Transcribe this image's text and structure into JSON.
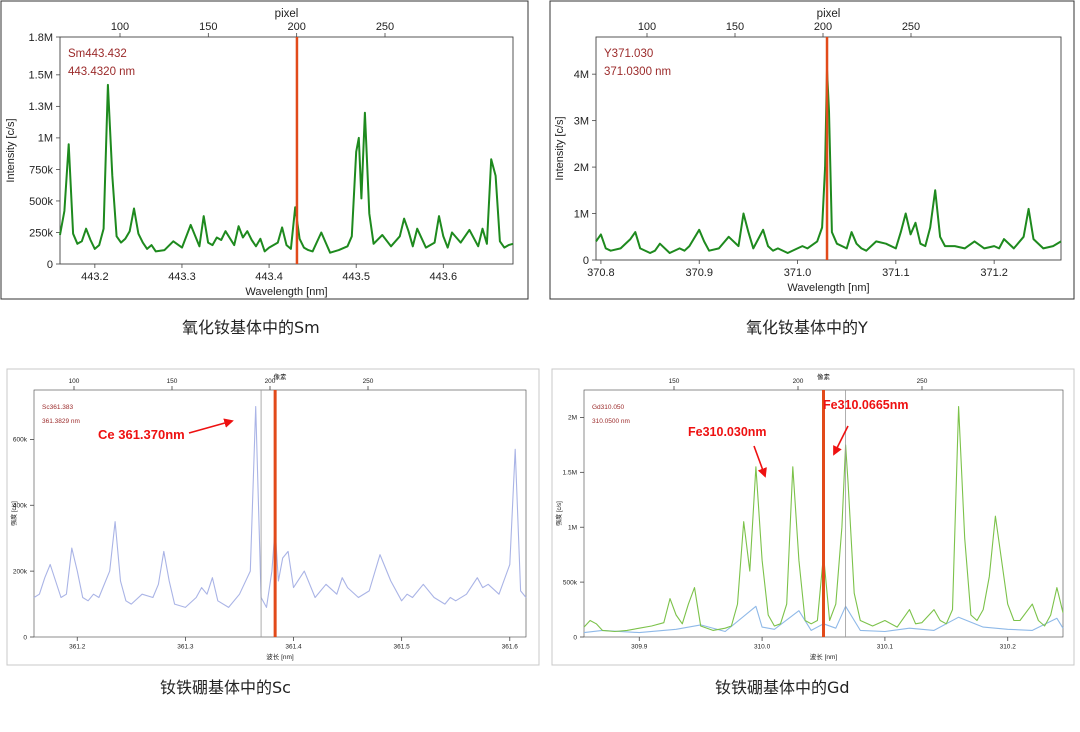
{
  "charts": [
    {
      "id": "sm",
      "caption": "氧化钕基体中的Sm",
      "chart_data": {
        "type": "line",
        "x_label": "Wavelength [nm]",
        "y_label": "Intensity [c/s]",
        "top_axis_label": "pixel",
        "xlim": [
          443.16,
          443.68
        ],
        "ylim": [
          0,
          1800000
        ],
        "x_ticks": [
          443.2,
          443.3,
          443.4,
          443.5,
          443.6
        ],
        "x_tick_labels": [
          "443.2",
          "443.3",
          "443.4",
          "443.5",
          "443.6"
        ],
        "y_ticks": [
          0,
          250000,
          500000,
          750000,
          1000000,
          1250000,
          1500000,
          1800000
        ],
        "y_tick_labels": [
          "0",
          "250k",
          "500k",
          "750k",
          "1M",
          "1.3M",
          "1.5M",
          "1.8M"
        ],
        "top_ticks": [
          100,
          150,
          200,
          250
        ],
        "annotations": [
          "Sm443.432",
          "443.4320 nm"
        ],
        "marker_x": 443.432,
        "colors": {
          "line": "#1e8a1e",
          "marker": "#e24a1a",
          "annotation": "#9b2a2a"
        },
        "series": [
          {
            "x": [
              443.16,
              443.165,
              443.17,
              443.175,
              443.18,
              443.185,
              443.19,
              443.195,
              443.2,
              443.205,
              443.21,
              443.215,
              443.22,
              443.225,
              443.23,
              443.235,
              443.24,
              443.245,
              443.25,
              443.255,
              443.26,
              443.265,
              443.27,
              443.28,
              443.29,
              443.3,
              443.31,
              443.32,
              443.325,
              443.33,
              443.335,
              443.34,
              443.345,
              443.35,
              443.36,
              443.365,
              443.37,
              443.375,
              443.38,
              443.385,
              443.39,
              443.395,
              443.4,
              443.41,
              443.415,
              443.42,
              443.425,
              443.43,
              443.435,
              443.44,
              443.445,
              443.45,
              443.46,
              443.465,
              443.47,
              443.48,
              443.49,
              443.495,
              443.5,
              443.503,
              443.506,
              443.51,
              443.515,
              443.52,
              443.53,
              443.54,
              443.55,
              443.555,
              443.56,
              443.565,
              443.57,
              443.58,
              443.59,
              443.595,
              443.6,
              443.605,
              443.61,
              443.62,
              443.63,
              443.64,
              443.645,
              443.65,
              443.655,
              443.66,
              443.665,
              443.67,
              443.675,
              443.68
            ],
            "y": [
              230000,
              420000,
              950000,
              240000,
              160000,
              180000,
              280000,
              190000,
              120000,
              150000,
              280000,
              1420000,
              700000,
              220000,
              170000,
              200000,
              260000,
              440000,
              240000,
              170000,
              120000,
              150000,
              100000,
              110000,
              180000,
              130000,
              310000,
              140000,
              380000,
              170000,
              150000,
              210000,
              190000,
              260000,
              150000,
              300000,
              210000,
              260000,
              190000,
              140000,
              200000,
              100000,
              130000,
              170000,
              290000,
              150000,
              120000,
              450000,
              200000,
              130000,
              110000,
              100000,
              250000,
              170000,
              90000,
              110000,
              140000,
              220000,
              890000,
              1000000,
              520000,
              1200000,
              400000,
              160000,
              230000,
              140000,
              220000,
              360000,
              260000,
              140000,
              280000,
              130000,
              170000,
              380000,
              220000,
              130000,
              250000,
              170000,
              270000,
              140000,
              280000,
              160000,
              830000,
              700000,
              180000,
              130000,
              150000,
              160000
            ]
          }
        ]
      }
    },
    {
      "id": "y",
      "caption": "氧化钕基体中的Y",
      "chart_data": {
        "type": "line",
        "x_label": "Wavelength [nm]",
        "y_label": "Intensity [c/s]",
        "top_axis_label": "pixel",
        "xlim": [
          370.795,
          371.268
        ],
        "ylim": [
          0,
          4800000
        ],
        "x_ticks": [
          370.8,
          370.9,
          371.0,
          371.1,
          371.2
        ],
        "x_tick_labels": [
          "370.8",
          "370.9",
          "371.0",
          "371.1",
          "371.2"
        ],
        "y_ticks": [
          0,
          1000000,
          2000000,
          3000000,
          4000000
        ],
        "y_tick_labels": [
          "0",
          "1M",
          "2M",
          "3M",
          "4M"
        ],
        "top_ticks": [
          100,
          150,
          200,
          250
        ],
        "annotations": [
          "Y371.030",
          "371.0300 nm"
        ],
        "marker_x": 371.03,
        "colors": {
          "line": "#1e8a1e",
          "marker": "#e24a1a",
          "annotation": "#9b2a2a"
        },
        "series": [
          {
            "x": [
              370.795,
              370.8,
              370.805,
              370.81,
              370.82,
              370.83,
              370.835,
              370.84,
              370.85,
              370.855,
              370.86,
              370.87,
              370.88,
              370.885,
              370.89,
              370.9,
              370.905,
              370.91,
              370.92,
              370.93,
              370.94,
              370.945,
              370.95,
              370.955,
              370.96,
              370.965,
              370.97,
              370.975,
              370.98,
              370.99,
              371.0,
              371.005,
              371.01,
              371.02,
              371.025,
              371.028,
              371.03,
              371.032,
              371.035,
              371.04,
              371.05,
              371.055,
              371.06,
              371.065,
              371.07,
              371.08,
              371.09,
              371.1,
              371.105,
              371.11,
              371.115,
              371.12,
              371.125,
              371.13,
              371.135,
              371.14,
              371.145,
              371.15,
              371.16,
              371.17,
              371.18,
              371.19,
              371.2,
              371.205,
              371.21,
              371.22,
              371.23,
              371.235,
              371.24,
              371.25,
              371.26,
              371.268
            ],
            "y": [
              400000,
              550000,
              250000,
              200000,
              250000,
              450000,
              600000,
              250000,
              150000,
              200000,
              350000,
              150000,
              250000,
              200000,
              300000,
              650000,
              400000,
              200000,
              250000,
              500000,
              300000,
              1000000,
              600000,
              250000,
              450000,
              650000,
              300000,
              200000,
              250000,
              150000,
              250000,
              300000,
              250000,
              400000,
              700000,
              2000000,
              4100000,
              3200000,
              600000,
              350000,
              250000,
              600000,
              350000,
              250000,
              200000,
              400000,
              350000,
              250000,
              600000,
              1000000,
              550000,
              800000,
              350000,
              300000,
              700000,
              1500000,
              500000,
              300000,
              300000,
              250000,
              400000,
              250000,
              300000,
              250000,
              450000,
              250000,
              500000,
              1100000,
              450000,
              250000,
              300000,
              400000
            ]
          }
        ]
      }
    },
    {
      "id": "sc",
      "caption": "钕铁硼基体中的Sc",
      "chart_data": {
        "type": "line",
        "x_label": "波长 [nm]",
        "y_label": "强度 [c/s]",
        "top_axis_label": "像素",
        "xlim": [
          361.16,
          361.615
        ],
        "ylim": [
          0,
          750000
        ],
        "x_ticks": [
          361.2,
          361.3,
          361.4,
          361.5,
          361.6
        ],
        "x_tick_labels": [
          "361.2",
          "361.3",
          "361.4",
          "361.5",
          "361.6"
        ],
        "y_ticks": [
          0,
          200000,
          400000,
          600000
        ],
        "y_tick_labels": [
          "0",
          "200k",
          "400k",
          "600k"
        ],
        "top_ticks": [
          100,
          150,
          200,
          250
        ],
        "annotations": [
          "Sc361.383",
          "361.3829 nm"
        ],
        "callout": "Ce 361.370nm",
        "marker_x": 361.383,
        "secondary_marker_x": 361.37,
        "colors": {
          "line": "#aab4e6",
          "marker": "#e24a1a",
          "annotation": "#9b2a2a",
          "callout": "#ee1111"
        },
        "series": [
          {
            "x": [
              361.16,
              361.165,
              361.17,
              361.175,
              361.18,
              361.185,
              361.19,
              361.195,
              361.2,
              361.205,
              361.21,
              361.215,
              361.22,
              361.23,
              361.235,
              361.24,
              361.245,
              361.25,
              361.26,
              361.27,
              361.275,
              361.28,
              361.285,
              361.29,
              361.3,
              361.31,
              361.315,
              361.32,
              361.325,
              361.33,
              361.34,
              361.35,
              361.36,
              361.365,
              361.37,
              361.375,
              361.38,
              361.383,
              361.386,
              361.39,
              361.395,
              361.4,
              361.41,
              361.42,
              361.43,
              361.44,
              361.445,
              361.45,
              361.46,
              361.47,
              361.48,
              361.49,
              361.5,
              361.505,
              361.51,
              361.52,
              361.53,
              361.54,
              361.545,
              361.55,
              361.56,
              361.57,
              361.575,
              361.58,
              361.59,
              361.6,
              361.605,
              361.61,
              361.615
            ],
            "y": [
              120000,
              130000,
              180000,
              220000,
              170000,
              120000,
              130000,
              270000,
              200000,
              120000,
              110000,
              130000,
              120000,
              200000,
              350000,
              170000,
              110000,
              100000,
              130000,
              120000,
              160000,
              260000,
              170000,
              100000,
              90000,
              120000,
              150000,
              130000,
              180000,
              110000,
              90000,
              130000,
              200000,
              700000,
              120000,
              90000,
              200000,
              330000,
              170000,
              240000,
              260000,
              150000,
              200000,
              120000,
              160000,
              130000,
              180000,
              150000,
              120000,
              140000,
              250000,
              170000,
              110000,
              130000,
              120000,
              160000,
              120000,
              100000,
              120000,
              110000,
              130000,
              180000,
              150000,
              160000,
              130000,
              220000,
              570000,
              140000,
              120000
            ]
          }
        ]
      }
    },
    {
      "id": "gd",
      "caption": "钕铁硼基体中的Gd",
      "chart_data": {
        "type": "line",
        "x_label": "波长 [nm]",
        "y_label": "强度 [c/s]",
        "top_axis_label": "像素",
        "xlim": [
          309.855,
          310.245
        ],
        "ylim": [
          0,
          2250000
        ],
        "x_ticks": [
          309.9,
          310.0,
          310.1,
          310.2
        ],
        "x_tick_labels": [
          "309.9",
          "310.0",
          "310.1",
          "310.2"
        ],
        "y_ticks": [
          0,
          500000,
          1000000,
          1500000,
          2000000
        ],
        "y_tick_labels": [
          "0",
          "500k",
          "1M",
          "1.5M",
          "2M"
        ],
        "top_ticks": [
          150,
          200,
          250
        ],
        "annotations": [
          "Gd310.050",
          "310.0500 nm"
        ],
        "callouts": [
          "Fe310.030nm",
          "Fe310.0665nm"
        ],
        "marker_x": 310.05,
        "secondary_marker_x": 310.068,
        "colors": {
          "series1": "#7cc24a",
          "series2": "#8fb9e8",
          "marker": "#e24a1a",
          "annotation": "#9b2a2a",
          "callout": "#ee1111"
        },
        "series": [
          {
            "x": [
              309.855,
              309.86,
              309.865,
              309.87,
              309.88,
              309.89,
              309.9,
              309.91,
              309.92,
              309.925,
              309.93,
              309.935,
              309.94,
              309.945,
              309.95,
              309.96,
              309.97,
              309.975,
              309.98,
              309.985,
              309.99,
              309.995,
              310.0,
              310.005,
              310.01,
              310.015,
              310.02,
              310.025,
              310.03,
              310.035,
              310.04,
              310.045,
              310.05,
              310.055,
              310.06,
              310.065,
              310.068,
              310.07,
              310.075,
              310.08,
              310.09,
              310.1,
              310.11,
              310.12,
              310.125,
              310.13,
              310.14,
              310.145,
              310.15,
              310.155,
              310.16,
              310.165,
              310.17,
              310.175,
              310.18,
              310.185,
              310.19,
              310.2,
              310.205,
              310.21,
              310.22,
              310.225,
              310.23,
              310.235,
              310.24,
              310.245
            ],
            "y": [
              90000,
              150000,
              120000,
              60000,
              50000,
              60000,
              80000,
              100000,
              130000,
              350000,
              200000,
              120000,
              300000,
              450000,
              100000,
              60000,
              80000,
              100000,
              300000,
              1050000,
              600000,
              1550000,
              700000,
              200000,
              100000,
              120000,
              300000,
              1550000,
              700000,
              150000,
              120000,
              150000,
              750000,
              150000,
              300000,
              1000000,
              1750000,
              1400000,
              400000,
              150000,
              100000,
              150000,
              90000,
              250000,
              120000,
              130000,
              250000,
              150000,
              120000,
              250000,
              2100000,
              900000,
              200000,
              150000,
              250000,
              550000,
              1100000,
              300000,
              150000,
              150000,
              300000,
              150000,
              100000,
              200000,
              450000,
              220000
            ]
          },
          {
            "x": [
              309.855,
              309.87,
              309.9,
              309.93,
              309.95,
              309.97,
              309.995,
              310.0,
              310.01,
              310.03,
              310.04,
              310.05,
              310.06,
              310.068,
              310.08,
              310.1,
              310.12,
              310.14,
              310.16,
              310.18,
              310.2,
              310.22,
              310.24,
              310.245
            ],
            "y": [
              40000,
              60000,
              40000,
              70000,
              110000,
              50000,
              280000,
              90000,
              70000,
              240000,
              60000,
              120000,
              80000,
              280000,
              60000,
              50000,
              80000,
              60000,
              180000,
              90000,
              70000,
              60000,
              170000,
              80000
            ]
          }
        ]
      }
    }
  ]
}
